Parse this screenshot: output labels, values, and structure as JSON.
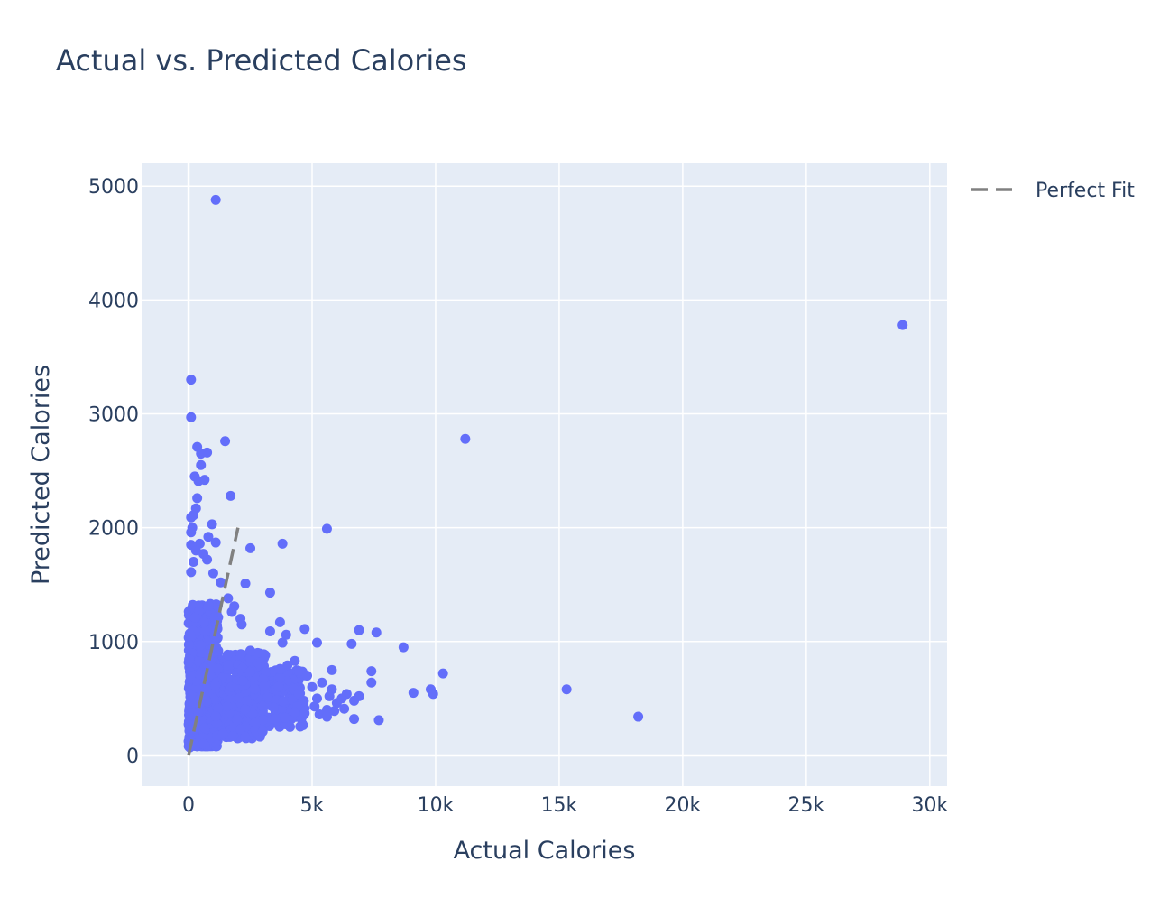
{
  "chart_data": {
    "type": "scatter",
    "title": "Actual vs. Predicted Calories",
    "xlabel": "Actual Calories",
    "ylabel": "Predicted Calories",
    "xlim": [
      -1900,
      30700
    ],
    "ylim": [
      -270,
      5200
    ],
    "xticks": [
      0,
      5000,
      10000,
      15000,
      20000,
      25000,
      30000
    ],
    "xtick_labels": [
      "0",
      "5k",
      "10k",
      "15k",
      "20k",
      "25k",
      "30k"
    ],
    "yticks": [
      0,
      1000,
      2000,
      3000,
      4000,
      5000
    ],
    "ytick_labels": [
      "0",
      "1000",
      "2000",
      "3000",
      "4000",
      "5000"
    ],
    "grid": true,
    "legend_position": "top-right",
    "colors": {
      "plot_bg": "#e5ecf6",
      "grid": "#ffffff",
      "points": "#636efa",
      "perfect_fit_line": "#808080"
    },
    "series": [
      {
        "name": "",
        "type": "scatter",
        "points": [
          [
            1100,
            4880
          ],
          [
            28900,
            3780
          ],
          [
            100,
            3300
          ],
          [
            100,
            2970
          ],
          [
            11200,
            2780
          ],
          [
            1480,
            2760
          ],
          [
            350,
            2710
          ],
          [
            750,
            2660
          ],
          [
            500,
            2650
          ],
          [
            500,
            2550
          ],
          [
            250,
            2450
          ],
          [
            400,
            2410
          ],
          [
            650,
            2420
          ],
          [
            1700,
            2280
          ],
          [
            350,
            2260
          ],
          [
            300,
            2170
          ],
          [
            200,
            2110
          ],
          [
            100,
            2090
          ],
          [
            5600,
            1990
          ],
          [
            950,
            2030
          ],
          [
            150,
            2000
          ],
          [
            100,
            1960
          ],
          [
            800,
            1920
          ],
          [
            1100,
            1870
          ],
          [
            3800,
            1860
          ],
          [
            2500,
            1820
          ],
          [
            450,
            1860
          ],
          [
            100,
            1850
          ],
          [
            300,
            1800
          ],
          [
            600,
            1770
          ],
          [
            750,
            1720
          ],
          [
            200,
            1700
          ],
          [
            1000,
            1600
          ],
          [
            100,
            1610
          ],
          [
            2300,
            1510
          ],
          [
            1300,
            1520
          ],
          [
            3300,
            1430
          ],
          [
            1600,
            1380
          ],
          [
            1850,
            1310
          ],
          [
            1750,
            1260
          ],
          [
            2100,
            1200
          ],
          [
            2150,
            1150
          ],
          [
            3700,
            1170
          ],
          [
            3300,
            1090
          ],
          [
            3950,
            1060
          ],
          [
            4700,
            1110
          ],
          [
            6900,
            1100
          ],
          [
            7600,
            1080
          ],
          [
            3800,
            990
          ],
          [
            5200,
            990
          ],
          [
            6600,
            980
          ],
          [
            8700,
            950
          ],
          [
            3100,
            880
          ],
          [
            2800,
            900
          ],
          [
            2500,
            920
          ],
          [
            4300,
            830
          ],
          [
            4000,
            790
          ],
          [
            3700,
            760
          ],
          [
            5800,
            750
          ],
          [
            7400,
            740
          ],
          [
            10300,
            720
          ],
          [
            4800,
            700
          ],
          [
            5400,
            640
          ],
          [
            7400,
            640
          ],
          [
            5000,
            600
          ],
          [
            9800,
            580
          ],
          [
            9100,
            550
          ],
          [
            9900,
            540
          ],
          [
            15300,
            580
          ],
          [
            5800,
            580
          ],
          [
            6400,
            540
          ],
          [
            6900,
            520
          ],
          [
            5700,
            520
          ],
          [
            6200,
            500
          ],
          [
            5200,
            500
          ],
          [
            4600,
            470
          ],
          [
            6700,
            480
          ],
          [
            6000,
            460
          ],
          [
            5100,
            430
          ],
          [
            5600,
            400
          ],
          [
            6300,
            410
          ],
          [
            5900,
            390
          ],
          [
            4400,
            430
          ],
          [
            4300,
            380
          ],
          [
            4700,
            370
          ],
          [
            5300,
            360
          ],
          [
            5600,
            340
          ],
          [
            6700,
            320
          ],
          [
            7700,
            310
          ],
          [
            18200,
            340
          ],
          [
            3900,
            330
          ],
          [
            3500,
            320
          ],
          [
            3000,
            310
          ],
          [
            2700,
            290
          ],
          [
            2300,
            250
          ],
          [
            1800,
            170
          ],
          [
            3000,
            210
          ],
          [
            2100,
            230
          ],
          [
            1400,
            190
          ],
          [
            600,
            100
          ],
          [
            100,
            80
          ],
          [
            50,
            70
          ]
        ]
      },
      {
        "name": "Perfect Fit",
        "type": "line",
        "dash": "dash",
        "points": [
          [
            0,
            0
          ],
          [
            2000,
            2000
          ]
        ]
      }
    ]
  }
}
